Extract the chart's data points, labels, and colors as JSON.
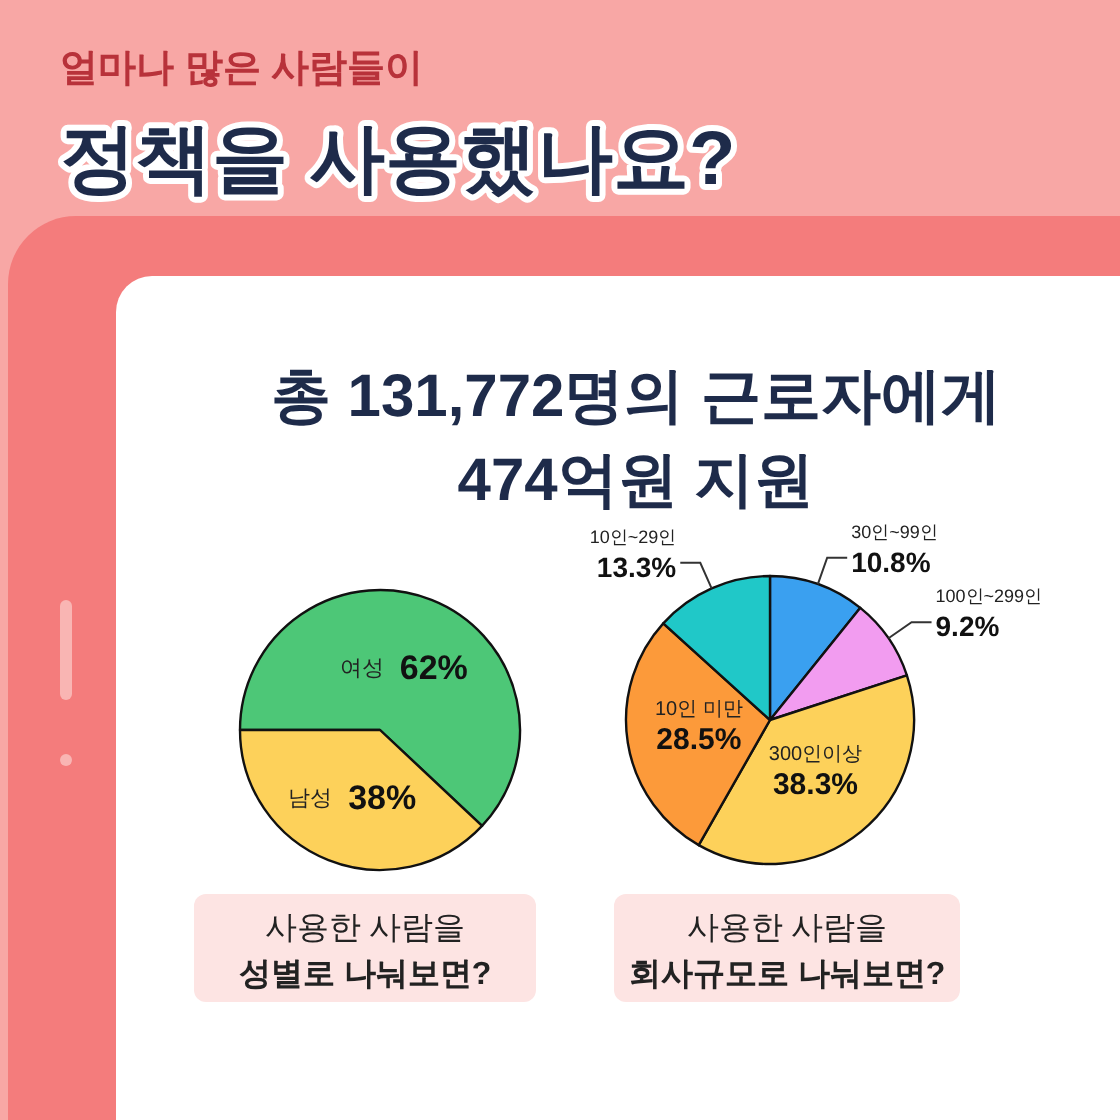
{
  "chart_data": [
    {
      "type": "pie",
      "title": "얼마나 많은 사람들이",
      "subtitle": "정책을 사용했나요?",
      "annotations": [
        "총 131,772명의 근로자에게",
        "474억원 지원",
        "사용한 사람을",
        "성별로 나눠보면?"
      ],
      "categories": [
        "여성",
        "남성"
      ],
      "values": [
        62,
        38
      ],
      "colors": [
        "#4dc777",
        "#fdd15a"
      ],
      "value_labels": [
        "62%",
        "38%"
      ],
      "data_labels": true
    },
    {
      "type": "pie",
      "annotations": [
        "사용한 사람을",
        "회사규모로 나눠보면?"
      ],
      "categories": [
        "30인~99인",
        "100인~299인",
        "300인이상",
        "10인 미만",
        "10인~29인"
      ],
      "values": [
        10.8,
        9.2,
        38.3,
        28.5,
        13.3
      ],
      "colors": [
        "#3aa0f0",
        "#f29cf0",
        "#fdd15a",
        "#fc9a3a",
        "#20c8c8"
      ],
      "value_labels": [
        "10.8%",
        "9.2%",
        "38.3%",
        "28.5%",
        "13.3%"
      ],
      "data_labels": true
    }
  ]
}
